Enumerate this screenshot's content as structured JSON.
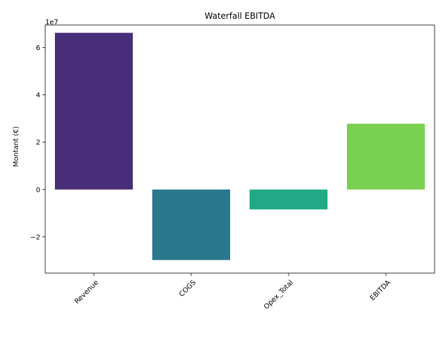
{
  "chart_data": {
    "type": "bar",
    "title": "Waterfall EBITDA",
    "xlabel": "",
    "ylabel": "Montant (€)",
    "y_offset_label": "1e7",
    "y_scale": 10000000,
    "categories": [
      "Revenue",
      "COGS",
      "Opex_Total",
      "EBITDA"
    ],
    "values": [
      66200000,
      -29800000,
      -8400000,
      27800000
    ],
    "colors": [
      "#482e78",
      "#2a788e",
      "#22a884",
      "#7ad151"
    ],
    "ylim": [
      -35300000,
      69500000
    ],
    "yticks": [
      -20000000,
      0,
      20000000,
      40000000,
      60000000
    ],
    "ytick_labels": [
      "−2",
      "0",
      "2",
      "4",
      "6"
    ],
    "grid": false,
    "legend": "none"
  }
}
